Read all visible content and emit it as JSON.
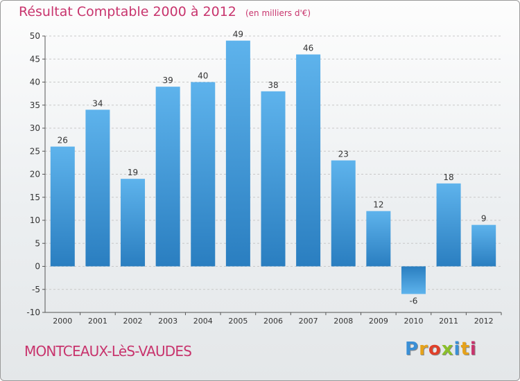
{
  "title": "Résultat Comptable 2000 à 2012",
  "unit_note": "(en milliers d'€)",
  "commune": "MONTCEAUX-LèS-VAUDES",
  "logo": {
    "letters": [
      "P",
      "r",
      "o",
      "x",
      "i",
      "t",
      "i"
    ],
    "colors": [
      "#3a8fd6",
      "#e6a21a",
      "#e0402a",
      "#8abf2a",
      "#3a8fd6",
      "#e6a21a",
      "#c8346d"
    ]
  },
  "colors": {
    "bar_light": "#5eb3ec",
    "bar_dark": "#2a7ec0",
    "title": "#c8346d",
    "axis": "#555555",
    "grid": "#c8c8c8"
  },
  "chart_data": {
    "type": "bar",
    "title": "Résultat Comptable 2000 à 2012",
    "xlabel": "",
    "ylabel": "",
    "categories": [
      "2000",
      "2001",
      "2002",
      "2003",
      "2004",
      "2005",
      "2006",
      "2007",
      "2008",
      "2009",
      "2010",
      "2011",
      "2012"
    ],
    "values": [
      26,
      34,
      19,
      39,
      40,
      49,
      38,
      46,
      23,
      12,
      -6,
      18,
      9
    ],
    "value_labels": [
      "26",
      "34",
      "19",
      "39",
      "40",
      "49",
      "38",
      "46",
      "23",
      "12",
      "-6",
      "18",
      "9"
    ],
    "ylim": [
      -10,
      50
    ],
    "yticks": [
      -10,
      -5,
      0,
      5,
      10,
      15,
      20,
      25,
      30,
      35,
      40,
      45,
      50
    ],
    "ytick_labels": [
      "-10",
      "-5",
      "0",
      "5",
      "10",
      "15",
      "20",
      "25",
      "30",
      "35",
      "40",
      "45",
      "50"
    ],
    "grid": true
  }
}
